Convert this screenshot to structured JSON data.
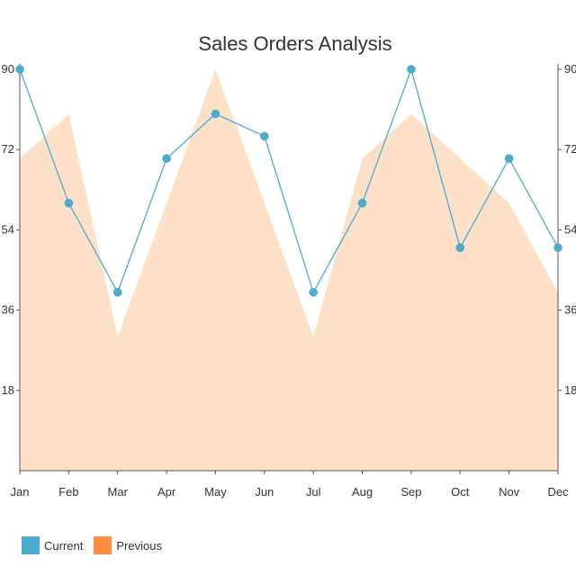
{
  "chart_data": {
    "type": "line",
    "title": "Sales Orders Analysis",
    "xlabel": "",
    "ylabel": "",
    "categories": [
      "Jan",
      "Feb",
      "Mar",
      "Apr",
      "May",
      "Jun",
      "Jul",
      "Aug",
      "Sep",
      "Oct",
      "Nov",
      "Dec"
    ],
    "ylim": [
      0,
      90
    ],
    "yticks": [
      18,
      36,
      54,
      72,
      90
    ],
    "grid": false,
    "legend_position": "bottom-left",
    "series": [
      {
        "name": "Current",
        "type": "line",
        "color": "#4aaccf",
        "values": [
          90,
          60,
          40,
          70,
          80,
          75,
          40,
          60,
          90,
          50,
          70,
          50
        ]
      },
      {
        "name": "Previous",
        "type": "area",
        "color": "#ff8c42",
        "fill_color": "#fde0c8",
        "values": [
          70,
          80,
          30,
          60,
          90,
          60,
          30,
          70,
          80,
          70,
          60,
          40
        ]
      }
    ]
  }
}
